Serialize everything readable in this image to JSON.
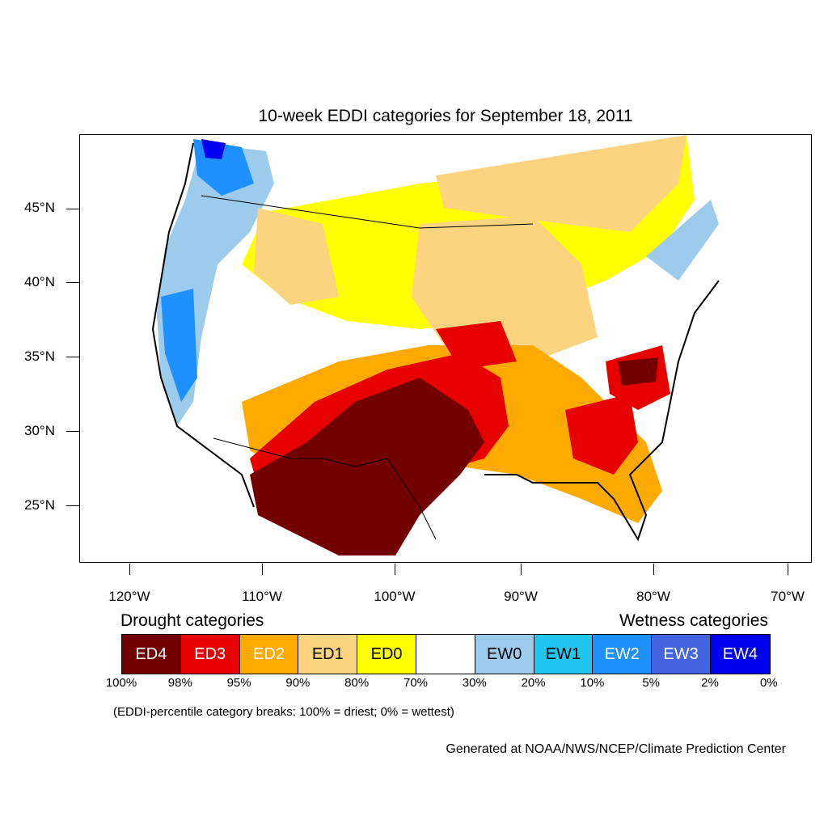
{
  "title": "10-week EDDI categories for September 18, 2011",
  "axes": {
    "lat_labels": [
      "45°N",
      "40°N",
      "35°N",
      "30°N",
      "25°N"
    ],
    "lon_labels": [
      "120°W",
      "110°W",
      "100°W",
      "90°W",
      "80°W",
      "70°W"
    ]
  },
  "legend": {
    "drought_heading": "Drought categories",
    "wetness_heading": "Wetness categories",
    "categories": [
      {
        "label": "ED4",
        "color": "#730000",
        "text_color": "#ffffff"
      },
      {
        "label": "ED3",
        "color": "#e60000",
        "text_color": "#ffffff"
      },
      {
        "label": "ED2",
        "color": "#ffaa00",
        "text_color": "#ffffff"
      },
      {
        "label": "ED1",
        "color": "#fcd37f",
        "text_color": "#000000"
      },
      {
        "label": "ED0",
        "color": "#ffff00",
        "text_color": "#000000"
      },
      {
        "label": "",
        "color": "#ffffff",
        "text_color": "#000000"
      },
      {
        "label": "EW0",
        "color": "#9ccbec",
        "text_color": "#000000"
      },
      {
        "label": "EW1",
        "color": "#22c5f2",
        "text_color": "#000000"
      },
      {
        "label": "EW2",
        "color": "#1e90ff",
        "text_color": "#ffffff"
      },
      {
        "label": "EW3",
        "color": "#4565e0",
        "text_color": "#ffffff"
      },
      {
        "label": "EW4",
        "color": "#0000f0",
        "text_color": "#ffffff"
      }
    ],
    "percentiles": [
      "100%",
      "98%",
      "95%",
      "90%",
      "80%",
      "70%",
      "30%",
      "20%",
      "10%",
      "5%",
      "2%",
      "0%"
    ],
    "note": "(EDDI-percentile category breaks: 100% = driest; 0% = wettest)"
  },
  "credit": "Generated at NOAA/NWS/NCEP/Climate Prediction Center"
}
